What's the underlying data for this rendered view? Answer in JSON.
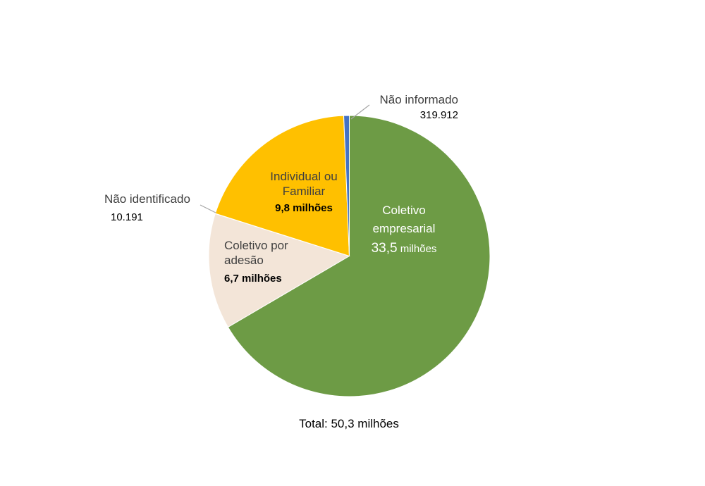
{
  "chart_data": {
    "type": "pie",
    "title": "",
    "total_label": "Total: 50,3 milhões",
    "direction": "clockwise",
    "start_angle_deg": 0,
    "legend_position": "none",
    "leader_line_color": "#a6a6a6",
    "slices": [
      {
        "id": "coletivo-empresarial",
        "label": "Coletivo empresarial",
        "value": 33500000,
        "value_label": "33,5 milhões",
        "value_number": "33,5",
        "value_unit": "milhões",
        "color": "#6d9b45",
        "text_color": "#ffffff"
      },
      {
        "id": "coletivo-por-adesao",
        "label": "Coletivo por adesão",
        "value": 6700000,
        "value_label": "6,7 milhões",
        "color": "#f3e5d8",
        "text_color": "#3f3f3f"
      },
      {
        "id": "nao-identificado",
        "label": "Não identificado",
        "value": 10191,
        "value_label": "10.191",
        "color": "#d9d9d9",
        "text_color": "#3f3f3f"
      },
      {
        "id": "individual-ou-familiar",
        "label": "Individual ou Familiar",
        "value": 9800000,
        "value_label": "9,8 milhões",
        "color": "#ffc000",
        "text_color": "#3f3f3f"
      },
      {
        "id": "nao-informado",
        "label": "Não informado",
        "value": 319912,
        "value_label": "319.912",
        "color": "#4472c4",
        "text_color": "#3f3f3f"
      }
    ]
  }
}
